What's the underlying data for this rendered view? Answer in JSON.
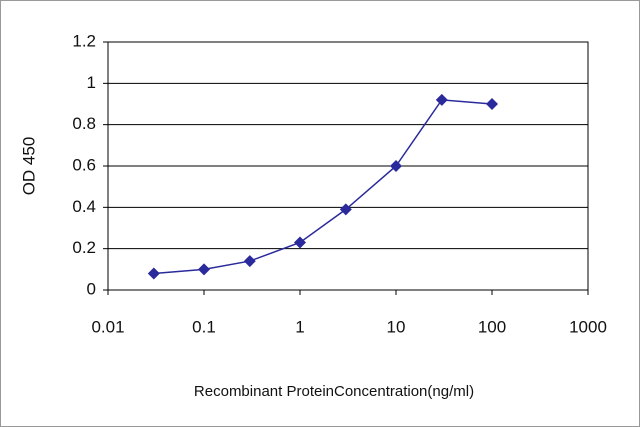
{
  "chart_data": {
    "type": "line",
    "xscale": "log",
    "grid": true,
    "color": "#2a2a9c",
    "x_label": "Recombinant ProteinConcentration(ng/ml)",
    "y_label": "OD 450",
    "x": [
      0.03,
      0.1,
      0.3,
      1,
      3,
      10,
      30,
      100
    ],
    "values": [
      0.08,
      0.1,
      0.14,
      0.23,
      0.39,
      0.6,
      0.92,
      0.9
    ],
    "xlim": [
      0.01,
      1000
    ],
    "xticks": [
      0.01,
      0.1,
      1,
      10,
      100,
      1000
    ],
    "ylim": [
      0,
      1.2
    ],
    "yticks": [
      0,
      0.2,
      0.4,
      0.6,
      0.8,
      1,
      1.2
    ]
  }
}
